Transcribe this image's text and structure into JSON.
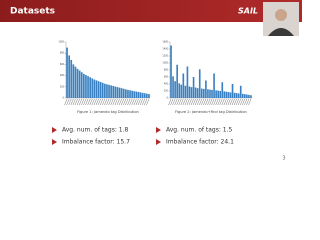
{
  "header": {
    "title": "Datasets",
    "logo": "SAIL"
  },
  "chart_data": [
    {
      "type": "bar",
      "caption": "Figure 1: Jamendo tag Distribution",
      "color": "#3b80c0",
      "categories": [
        null,
        null,
        null,
        null,
        null,
        null,
        null,
        null,
        null,
        null,
        null,
        null,
        null,
        null,
        null,
        null,
        null,
        null,
        null,
        null,
        null,
        null,
        null,
        null,
        null,
        null,
        null,
        null,
        null,
        null,
        null,
        null,
        null,
        null,
        null,
        null,
        null,
        null,
        null,
        null
      ],
      "values": [
        900,
        760,
        680,
        600,
        560,
        520,
        490,
        460,
        430,
        410,
        390,
        370,
        350,
        330,
        315,
        300,
        285,
        270,
        255,
        245,
        235,
        225,
        215,
        205,
        195,
        185,
        175,
        165,
        155,
        145,
        138,
        130,
        122,
        115,
        108,
        100,
        92,
        85,
        78,
        70
      ],
      "ylim": [
        0,
        1000
      ],
      "yticks": [
        0,
        200,
        400,
        600,
        800,
        1000
      ]
    },
    {
      "type": "bar",
      "caption": "Figure 2: Jamendo+Rnd tag Distribution",
      "color": "#3b80c0",
      "categories": [
        null,
        null,
        null,
        null,
        null,
        null,
        null,
        null,
        null,
        null,
        null,
        null,
        null,
        null,
        null,
        null,
        null,
        null,
        null,
        null,
        null,
        null,
        null,
        null,
        null,
        null,
        null,
        null,
        null,
        null,
        null,
        null,
        null,
        null,
        null,
        null,
        null,
        null,
        null,
        null
      ],
      "values": [
        1500,
        620,
        480,
        950,
        420,
        380,
        700,
        350,
        900,
        330,
        310,
        600,
        300,
        280,
        820,
        270,
        260,
        500,
        250,
        240,
        230,
        700,
        220,
        210,
        200,
        450,
        190,
        180,
        170,
        160,
        400,
        150,
        140,
        130,
        350,
        120,
        110,
        100,
        90,
        80
      ],
      "ylim": [
        0,
        1600
      ],
      "yticks": [
        0,
        200,
        400,
        600,
        800,
        1000,
        1200,
        1400,
        1600
      ]
    }
  ],
  "bullets": [
    [
      "Avg. num. of tags: 1.8",
      "Imbalance factor: 15.7"
    ],
    [
      "Avg. num. of tags: 1.5",
      "Imbalance factor: 24.1"
    ]
  ],
  "page_number": "3"
}
